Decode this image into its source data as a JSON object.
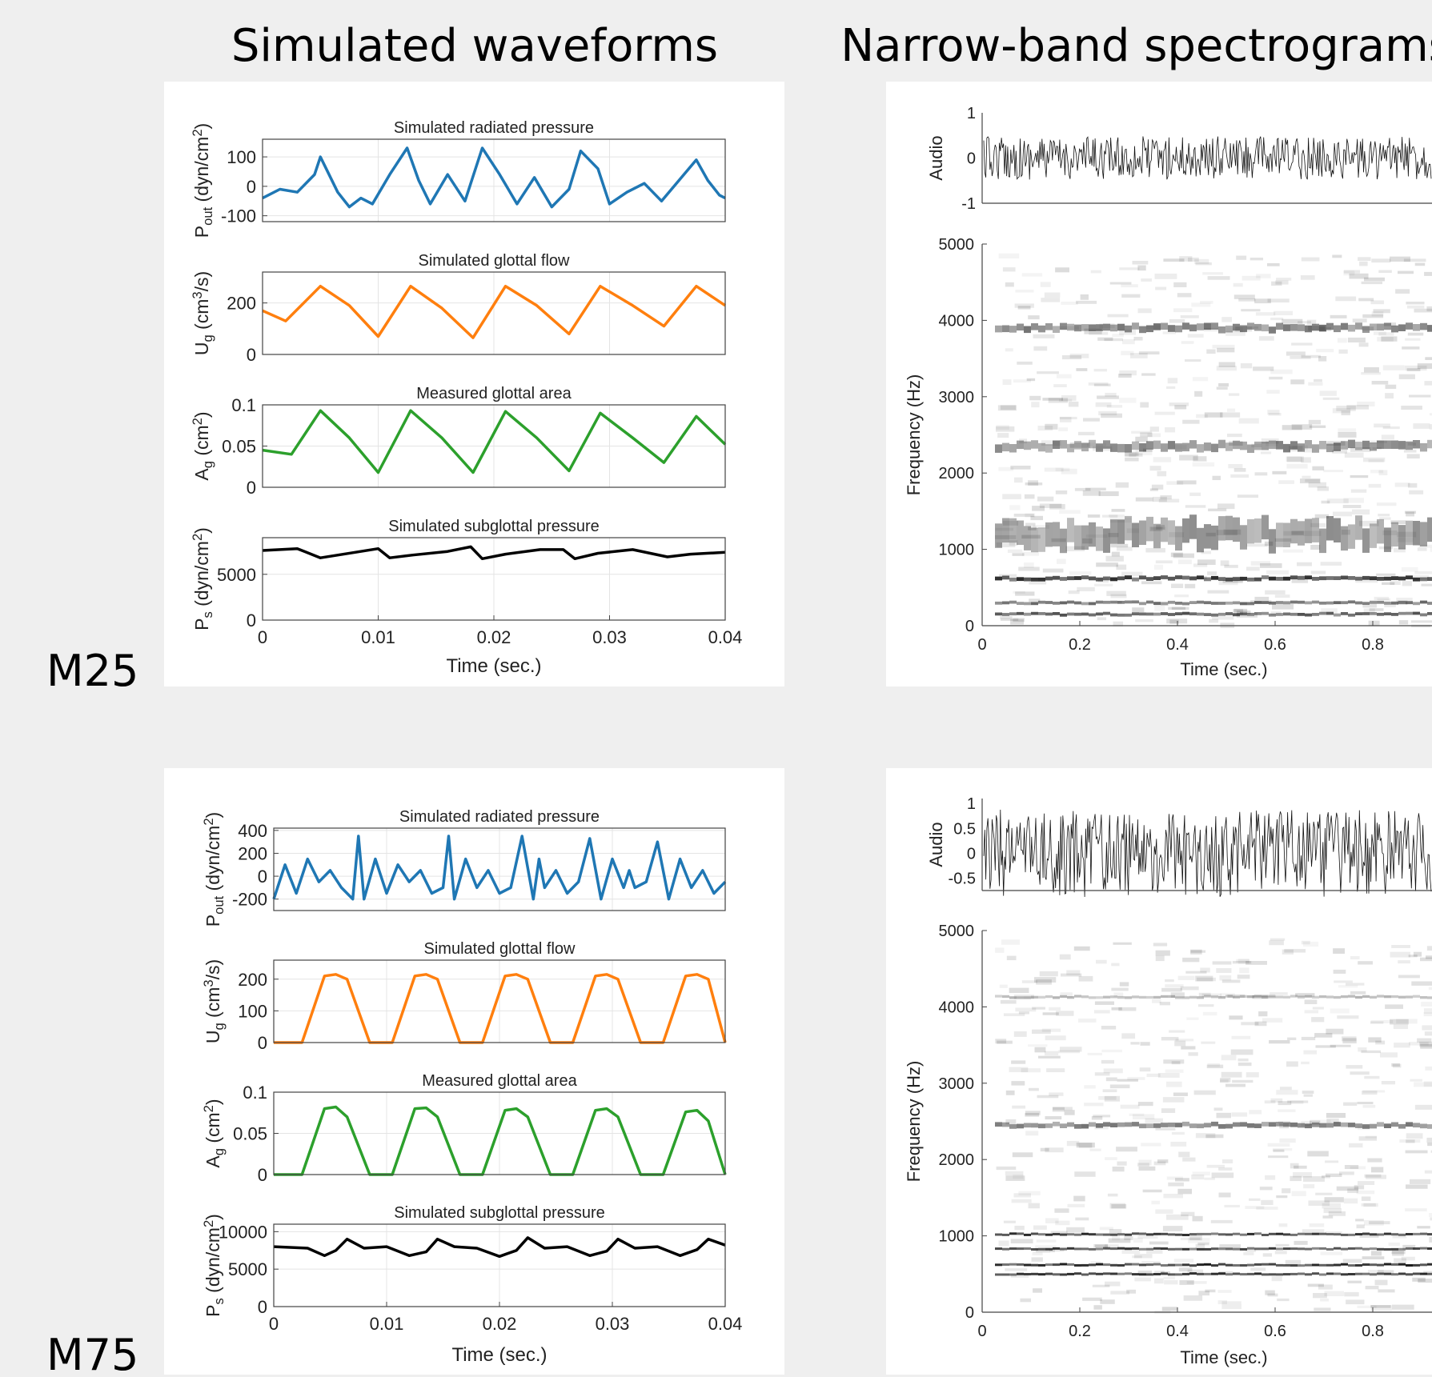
{
  "headers": {
    "left": "Simulated waveforms",
    "right": "Narrow-band spectrograms"
  },
  "row_labels": [
    "M25",
    "M75"
  ],
  "colors": {
    "background": "#efefef",
    "panel": "#ffffff",
    "pressure": "#1f77b4",
    "flow": "#ff7f0e",
    "area": "#2ca02c",
    "subglottal": "#000000"
  },
  "chart_data": [
    {
      "id": "m25-waveforms",
      "type": "line",
      "speaker": "M25",
      "xlabel": "Time (sec.)",
      "xlim": [
        0,
        0.04
      ],
      "xticks": [
        "0",
        "0.01",
        "0.02",
        "0.03",
        "0.04"
      ],
      "subplots": [
        {
          "title": "Simulated radiated pressure",
          "ylabel": "P_out (dyn/cm^2)",
          "ylim": [
            -120,
            160
          ],
          "yticks": [
            {
              "v": 100,
              "t": "100"
            },
            {
              "v": 0,
              "t": "0"
            },
            {
              "v": -100,
              "t": "-100"
            }
          ],
          "color": "#1f77b4",
          "x": [
            0,
            0.0015,
            0.003,
            0.0045,
            0.005,
            0.0055,
            0.0065,
            0.0075,
            0.0085,
            0.0095,
            0.011,
            0.0125,
            0.0135,
            0.0145,
            0.016,
            0.0175,
            0.019,
            0.0205,
            0.022,
            0.0235,
            0.025,
            0.0265,
            0.0275,
            0.029,
            0.03,
            0.0315,
            0.033,
            0.0345,
            0.036,
            0.0375,
            0.0385,
            0.0395,
            0.04
          ],
          "y": [
            -40,
            -10,
            -20,
            40,
            100,
            60,
            -20,
            -70,
            -40,
            -60,
            40,
            130,
            20,
            -60,
            40,
            -50,
            130,
            40,
            -60,
            30,
            -70,
            -10,
            120,
            60,
            -60,
            -20,
            10,
            -50,
            20,
            90,
            20,
            -30,
            -40
          ]
        },
        {
          "title": "Simulated glottal flow",
          "ylabel": "U_g (cm^3/s)",
          "ylim": [
            0,
            320
          ],
          "yticks": [
            {
              "v": 200,
              "t": "200"
            },
            {
              "v": 0,
              "t": "0"
            }
          ],
          "color": "#ff7f0e",
          "x": [
            0,
            0.002,
            0.005,
            0.0075,
            0.01,
            0.0128,
            0.0155,
            0.0182,
            0.021,
            0.0237,
            0.0265,
            0.0292,
            0.032,
            0.0347,
            0.0375,
            0.04
          ],
          "y": [
            170,
            130,
            265,
            190,
            70,
            265,
            180,
            65,
            265,
            190,
            80,
            265,
            190,
            110,
            265,
            190
          ]
        },
        {
          "title": "Measured glottal area",
          "ylabel": "A_g (cm^2)",
          "ylim": [
            0,
            0.1
          ],
          "yticks": [
            {
              "v": 0.1,
              "t": "0.1"
            },
            {
              "v": 0.05,
              "t": "0.05"
            },
            {
              "v": 0,
              "t": "0"
            }
          ],
          "color": "#2ca02c",
          "x": [
            0,
            0.0025,
            0.005,
            0.0075,
            0.01,
            0.0128,
            0.0155,
            0.0182,
            0.021,
            0.0237,
            0.0265,
            0.0292,
            0.032,
            0.0347,
            0.0375,
            0.04
          ],
          "y": [
            0.045,
            0.04,
            0.093,
            0.06,
            0.018,
            0.093,
            0.06,
            0.018,
            0.092,
            0.06,
            0.02,
            0.09,
            0.06,
            0.03,
            0.086,
            0.052
          ]
        },
        {
          "title": "Simulated subglottal pressure",
          "ylabel": "P_s (dyn/cm^2)",
          "ylim": [
            0,
            9000
          ],
          "yticks": [
            {
              "v": 5000,
              "t": "5000"
            },
            {
              "v": 0,
              "t": "0"
            }
          ],
          "color": "#000000",
          "x": [
            0,
            0.003,
            0.005,
            0.008,
            0.01,
            0.011,
            0.013,
            0.016,
            0.018,
            0.019,
            0.021,
            0.024,
            0.026,
            0.027,
            0.029,
            0.032,
            0.035,
            0.037,
            0.04
          ],
          "y": [
            7600,
            7800,
            6800,
            7400,
            7800,
            6800,
            7100,
            7500,
            8000,
            6700,
            7200,
            7700,
            7700,
            6700,
            7300,
            7700,
            6900,
            7200,
            7400
          ]
        }
      ]
    },
    {
      "id": "m25-spectrogram",
      "type": "heatmap",
      "speaker": "M25",
      "audio": {
        "ylabel": "Audio",
        "yticks": [
          "1",
          "0",
          "-1"
        ],
        "ylim": [
          -1,
          1
        ],
        "amplitude": 0.3
      },
      "ylabel": "Frequency (Hz)",
      "ylim": [
        0,
        5000
      ],
      "yticks": [
        "5000",
        "4000",
        "3000",
        "2000",
        "1000",
        "0"
      ],
      "xlabel": "Time (sec.)",
      "xticks": [
        "0",
        "0.2",
        "0.4",
        "0.6",
        "0.8"
      ],
      "bands": [
        {
          "f": 3900,
          "w": 90,
          "o": 0.55
        },
        {
          "f": 2350,
          "w": 110,
          "o": 0.5
        },
        {
          "f": 1200,
          "w": 320,
          "o": 0.45
        },
        {
          "f": 620,
          "w": 50,
          "o": 0.85
        },
        {
          "f": 300,
          "w": 40,
          "o": 0.6
        },
        {
          "f": 150,
          "w": 40,
          "o": 0.7
        }
      ]
    },
    {
      "id": "m75-waveforms",
      "type": "line",
      "speaker": "M75",
      "xlabel": "Time (sec.)",
      "xlim": [
        0,
        0.04
      ],
      "xticks": [
        "0",
        "0.01",
        "0.02",
        "0.03",
        "0.04"
      ],
      "subplots": [
        {
          "title": "Simulated radiated pressure",
          "ylabel": "P_out (dyn/cm^2)",
          "ylim": [
            -300,
            420
          ],
          "yticks": [
            {
              "v": 400,
              "t": "400"
            },
            {
              "v": 200,
              "t": "200"
            },
            {
              "v": 0,
              "t": "0"
            },
            {
              "v": -200,
              "t": "-200"
            }
          ],
          "color": "#1f77b4",
          "x": [
            0,
            0.001,
            0.002,
            0.003,
            0.004,
            0.005,
            0.006,
            0.007,
            0.0075,
            0.008,
            0.009,
            0.01,
            0.011,
            0.012,
            0.013,
            0.014,
            0.015,
            0.0155,
            0.016,
            0.017,
            0.018,
            0.019,
            0.02,
            0.021,
            0.022,
            0.023,
            0.0235,
            0.024,
            0.025,
            0.026,
            0.027,
            0.028,
            0.029,
            0.03,
            0.031,
            0.0315,
            0.032,
            0.033,
            0.034,
            0.035,
            0.036,
            0.037,
            0.038,
            0.039,
            0.04
          ],
          "y": [
            -200,
            100,
            -150,
            150,
            -50,
            50,
            -100,
            -200,
            350,
            -200,
            150,
            -150,
            100,
            -50,
            50,
            -150,
            -100,
            350,
            -200,
            150,
            -100,
            50,
            -150,
            -100,
            350,
            -200,
            150,
            -100,
            50,
            -150,
            -50,
            330,
            -200,
            150,
            -100,
            50,
            -100,
            -50,
            300,
            -200,
            150,
            -100,
            50,
            -150,
            -50
          ]
        },
        {
          "title": "Simulated glottal flow",
          "ylabel": "U_g (cm^3/s)",
          "ylim": [
            0,
            260
          ],
          "yticks": [
            {
              "v": 200,
              "t": "200"
            },
            {
              "v": 100,
              "t": "100"
            },
            {
              "v": 0,
              "t": "0"
            }
          ],
          "color": "#ff7f0e",
          "x": [
            0,
            0.0025,
            0.0045,
            0.0055,
            0.0065,
            0.0085,
            0.0105,
            0.0125,
            0.0135,
            0.0145,
            0.0165,
            0.0185,
            0.0205,
            0.0215,
            0.0225,
            0.0245,
            0.0265,
            0.0285,
            0.0295,
            0.0305,
            0.0325,
            0.0345,
            0.0365,
            0.0375,
            0.0385,
            0.04
          ],
          "y": [
            0,
            0,
            210,
            215,
            200,
            0,
            0,
            210,
            215,
            200,
            0,
            0,
            210,
            215,
            200,
            0,
            0,
            210,
            215,
            200,
            0,
            0,
            210,
            215,
            200,
            0
          ]
        },
        {
          "title": "Measured glottal area",
          "ylabel": "A_g (cm^2)",
          "ylim": [
            0,
            0.1
          ],
          "yticks": [
            {
              "v": 0.1,
              "t": "0.1"
            },
            {
              "v": 0.05,
              "t": "0.05"
            },
            {
              "v": 0,
              "t": "0"
            }
          ],
          "color": "#2ca02c",
          "x": [
            0,
            0.0025,
            0.0045,
            0.0055,
            0.0065,
            0.0085,
            0.0105,
            0.0125,
            0.0135,
            0.0145,
            0.0165,
            0.0185,
            0.0205,
            0.0215,
            0.0225,
            0.0245,
            0.0265,
            0.0285,
            0.0295,
            0.0305,
            0.0325,
            0.0345,
            0.0365,
            0.0375,
            0.0385,
            0.04
          ],
          "y": [
            0,
            0,
            0.08,
            0.082,
            0.07,
            0,
            0,
            0.08,
            0.081,
            0.07,
            0,
            0,
            0.078,
            0.08,
            0.07,
            0,
            0,
            0.078,
            0.08,
            0.07,
            0,
            0,
            0.076,
            0.078,
            0.065,
            0
          ]
        },
        {
          "title": "Simulated subglottal pressure",
          "ylabel": "P_s (dyn/cm^2)",
          "ylim": [
            0,
            11000
          ],
          "yticks": [
            {
              "v": 10000,
              "t": "10000"
            },
            {
              "v": 5000,
              "t": "5000"
            },
            {
              "v": 0,
              "t": "0"
            }
          ],
          "color": "#000000",
          "x": [
            0,
            0.003,
            0.0045,
            0.0055,
            0.0065,
            0.008,
            0.01,
            0.012,
            0.0135,
            0.0145,
            0.016,
            0.018,
            0.02,
            0.0215,
            0.0225,
            0.024,
            0.026,
            0.028,
            0.0295,
            0.0305,
            0.032,
            0.034,
            0.036,
            0.0375,
            0.0385,
            0.04
          ],
          "y": [
            8000,
            7800,
            6800,
            7500,
            9000,
            7800,
            8000,
            6800,
            7300,
            9000,
            8000,
            7800,
            6700,
            7500,
            9200,
            7800,
            8000,
            6800,
            7400,
            9000,
            7800,
            8000,
            6800,
            7600,
            9000,
            8200
          ]
        }
      ]
    },
    {
      "id": "m75-spectrogram",
      "type": "heatmap",
      "speaker": "M75",
      "audio": {
        "ylabel": "Audio",
        "yticks": [
          "1",
          "0.5",
          "0",
          "-0.5"
        ],
        "ylim": [
          -0.75,
          1.1
        ],
        "amplitude": 0.55
      },
      "ylabel": "Frequency (Hz)",
      "ylim": [
        0,
        5000
      ],
      "yticks": [
        "5000",
        "4000",
        "3000",
        "2000",
        "1000",
        "0"
      ],
      "xlabel": "Time (sec.)",
      "xticks": [
        "0",
        "0.2",
        "0.4",
        "0.6",
        "0.8"
      ],
      "bands": [
        {
          "f": 4130,
          "w": 35,
          "o": 0.3
        },
        {
          "f": 2450,
          "w": 60,
          "o": 0.55
        },
        {
          "f": 1020,
          "w": 30,
          "o": 0.85
        },
        {
          "f": 830,
          "w": 25,
          "o": 0.8
        },
        {
          "f": 620,
          "w": 30,
          "o": 0.9
        },
        {
          "f": 500,
          "w": 25,
          "o": 0.85
        }
      ]
    }
  ]
}
